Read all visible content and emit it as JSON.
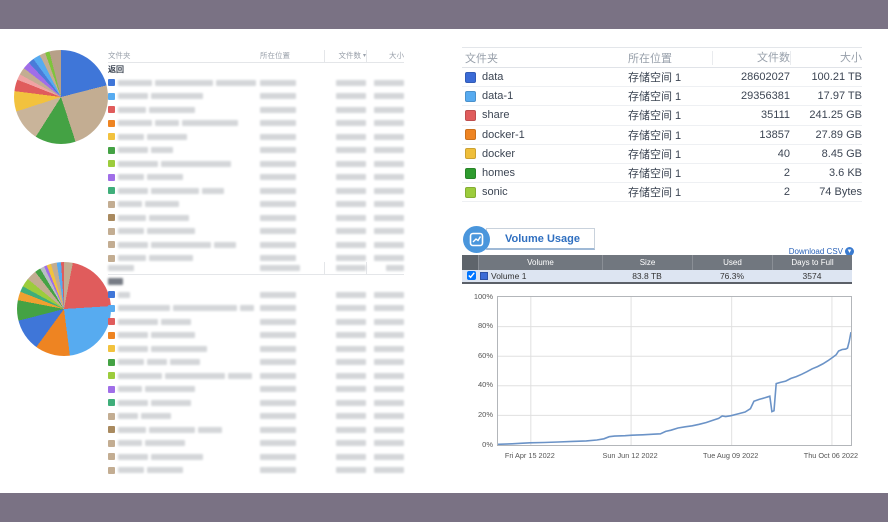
{
  "frame": {
    "bar_color": "#7a7284",
    "content_color": "#ffffff"
  },
  "left_panel": {
    "table1": {
      "headers": {
        "folder": "文件夹",
        "location": "所在位置",
        "count": "文件数",
        "sort_icon": "▾",
        "size": "大小"
      },
      "back_label": "返回",
      "rows": [
        {
          "color": "#3f76d8",
          "name_blobs": [
            34,
            58,
            40
          ]
        },
        {
          "color": "#57abf0",
          "name_blobs": [
            30,
            52
          ]
        },
        {
          "color": "#e05c5c",
          "name_blobs": [
            28,
            46
          ]
        },
        {
          "color": "#ee8422",
          "name_blobs": [
            34,
            24,
            56
          ]
        },
        {
          "color": "#f2c23e",
          "name_blobs": [
            26,
            40
          ]
        },
        {
          "color": "#44a244",
          "name_blobs": [
            30,
            22
          ]
        },
        {
          "color": "#9ccc3c",
          "name_blobs": [
            40,
            70
          ]
        },
        {
          "color": "#a06ee8",
          "name_blobs": [
            26,
            36
          ]
        },
        {
          "color": "#3fae7a",
          "name_blobs": [
            30,
            48,
            22
          ]
        },
        {
          "color": "#c3ad92",
          "name_blobs": [
            24,
            34
          ]
        },
        {
          "color": "#a98a5f",
          "name_blobs": [
            28,
            40
          ]
        },
        {
          "color": "#c3ad92",
          "name_blobs": [
            26,
            48
          ]
        },
        {
          "color": "#c3ad92",
          "name_blobs": [
            30,
            60,
            22
          ]
        },
        {
          "color": "#c3ad92",
          "name_blobs": [
            28,
            44
          ]
        }
      ]
    },
    "table2": {
      "header_blobs": [
        26,
        40,
        30,
        18
      ],
      "rows": [
        {
          "color": "#3f76d8",
          "name_blobs": [
            12
          ]
        },
        {
          "color": "#57abf0",
          "name_blobs": [
            52,
            64,
            14
          ]
        },
        {
          "color": "#e05c5c",
          "name_blobs": [
            40,
            30
          ]
        },
        {
          "color": "#ee8422",
          "name_blobs": [
            30,
            44
          ]
        },
        {
          "color": "#f2c23e",
          "name_blobs": [
            30,
            56
          ]
        },
        {
          "color": "#44a244",
          "name_blobs": [
            26,
            20,
            30
          ]
        },
        {
          "color": "#9ccc3c",
          "name_blobs": [
            44,
            60,
            24
          ]
        },
        {
          "color": "#a06ee8",
          "name_blobs": [
            24,
            50
          ]
        },
        {
          "color": "#3fae7a",
          "name_blobs": [
            30,
            40
          ]
        },
        {
          "color": "#c3ad92",
          "name_blobs": [
            20,
            30
          ]
        },
        {
          "color": "#a98a5f",
          "name_blobs": [
            28,
            46,
            24
          ]
        },
        {
          "color": "#c3ad92",
          "name_blobs": [
            24,
            40
          ]
        },
        {
          "color": "#c3ad92",
          "name_blobs": [
            30,
            52
          ]
        },
        {
          "color": "#c3ad92",
          "name_blobs": [
            26,
            36
          ]
        }
      ]
    }
  },
  "right_panel": {
    "folder_table": {
      "headers": {
        "folder": "文件夹",
        "location": "所在位置",
        "count": "文件数",
        "size": "大小"
      },
      "rows": [
        {
          "color": "#3b6bd6",
          "name": "data",
          "location": "存储空间 1",
          "count": "28602027",
          "size": "100.21 TB"
        },
        {
          "color": "#57abf0",
          "name": "data-1",
          "location": "存储空间 1",
          "count": "29356381",
          "size": "17.97 TB"
        },
        {
          "color": "#e05c5c",
          "name": "share",
          "location": "存储空间 1",
          "count": "35111",
          "size": "241.25 GB"
        },
        {
          "color": "#ee8422",
          "name": "docker-1",
          "location": "存储空间 1",
          "count": "13857",
          "size": "27.89 GB"
        },
        {
          "color": "#efbe3a",
          "name": "docker",
          "location": "存储空间 1",
          "count": "40",
          "size": "8.45 GB"
        },
        {
          "color": "#2e9b2e",
          "name": "homes",
          "location": "存储空间 1",
          "count": "2",
          "size": "3.6 KB"
        },
        {
          "color": "#9ccc3c",
          "name": "sonic",
          "location": "存储空间 1",
          "count": "2",
          "size": "74 Bytes"
        }
      ]
    },
    "volume_usage": {
      "title": "Volume Usage",
      "download_csv": "Download CSV",
      "table": {
        "headers": {
          "volume": "Volume",
          "size": "Size",
          "used": "Used",
          "days_to_full": "Days to Full"
        },
        "row": {
          "name": "Volume 1",
          "size": "83.8 TB",
          "used": "76.3%",
          "days_to_full": "3574",
          "color": "#3b6bd6",
          "checked": true
        }
      }
    }
  },
  "chart_data": [
    {
      "type": "pie",
      "title": "folder size distribution (top table, labels blurred)",
      "values": [
        21,
        24,
        14,
        11,
        7,
        4,
        2,
        2.5,
        2.5,
        2,
        2.5,
        2,
        1.5,
        4
      ],
      "colors": [
        "#3f76d8",
        "#c3ad92",
        "#44a244",
        "#c9b49a",
        "#f2c23e",
        "#e05c5c",
        "#f0a3a3",
        "#c3ad92",
        "#a06ee8",
        "#4a7bd9",
        "#57abf0",
        "#c3ad92",
        "#7ec43c",
        "#b7a088"
      ]
    },
    {
      "type": "pie",
      "title": "folder size distribution (bottom table, labels blurred)",
      "values": [
        3,
        21,
        24,
        12,
        11,
        7,
        3,
        2,
        3,
        3.5,
        2,
        1.5,
        1,
        1.5,
        2,
        1.5,
        1
      ],
      "colors": [
        "#c3ad92",
        "#e05c5c",
        "#57abf0",
        "#ee8422",
        "#3f76d8",
        "#44a244",
        "#f0a030",
        "#3fae7a",
        "#9ccc3c",
        "#c3ad92",
        "#44a244",
        "#b9bec4",
        "#a06ee8",
        "#f2c23e",
        "#c3ad92",
        "#57abf0",
        "#e05c5c"
      ]
    },
    {
      "type": "line",
      "title": "Volume 1 usage over time",
      "line_color": "#6b93c7",
      "ylim": [
        0,
        100
      ],
      "y_ticks": [
        0,
        20,
        40,
        60,
        80,
        100
      ],
      "y_tick_suffix": "%",
      "x_ticks": [
        {
          "label": "Fri Apr 15 2022",
          "pos": 9.3
        },
        {
          "label": "Sun Jun 12 2022",
          "pos": 37.7
        },
        {
          "label": "Tue Aug 09 2022",
          "pos": 66.2
        },
        {
          "label": "Thu Oct 06 2022",
          "pos": 94.6
        }
      ],
      "points": [
        [
          0,
          0.5
        ],
        [
          4,
          0.8
        ],
        [
          7,
          1.2
        ],
        [
          9,
          1.5
        ],
        [
          13,
          1.7
        ],
        [
          17,
          2.0
        ],
        [
          21,
          2.4
        ],
        [
          25,
          2.8
        ],
        [
          28,
          3.4
        ],
        [
          30,
          4.2
        ],
        [
          31.5,
          5.6
        ],
        [
          33,
          6.0
        ],
        [
          36,
          6.3
        ],
        [
          38,
          6.6
        ],
        [
          41,
          6.9
        ],
        [
          44,
          7.3
        ],
        [
          46,
          7.6
        ],
        [
          47.5,
          9.2
        ],
        [
          49,
          10.0
        ],
        [
          51,
          11.5
        ],
        [
          53,
          12.3
        ],
        [
          55,
          13.0
        ],
        [
          57,
          14.0
        ],
        [
          59,
          15.2
        ],
        [
          61,
          16.8
        ],
        [
          62.5,
          18.0
        ],
        [
          63.5,
          19.6
        ],
        [
          64.5,
          19.2
        ],
        [
          66,
          19.8
        ],
        [
          68,
          21.0
        ],
        [
          70,
          22.3
        ],
        [
          71.5,
          24.5
        ],
        [
          72.5,
          29.5
        ],
        [
          74,
          30.8
        ],
        [
          75.5,
          31.8
        ],
        [
          76.5,
          32.6
        ],
        [
          77,
          33.0
        ],
        [
          77.6,
          22.6
        ],
        [
          78.2,
          23.2
        ],
        [
          78.8,
          41.5
        ],
        [
          80,
          42.3
        ],
        [
          81.5,
          43.2
        ],
        [
          83,
          45.0
        ],
        [
          84.5,
          46.2
        ],
        [
          86,
          47.8
        ],
        [
          87.5,
          49.5
        ],
        [
          89,
          51.5
        ],
        [
          90.5,
          53.0
        ],
        [
          92,
          54.8
        ],
        [
          93.5,
          57.0
        ],
        [
          95,
          59.5
        ],
        [
          95.8,
          61.0
        ],
        [
          96.5,
          63.5
        ],
        [
          97.5,
          64.5
        ],
        [
          98.5,
          64.8
        ],
        [
          99,
          65.5
        ],
        [
          99.5,
          70.0
        ],
        [
          100,
          76.3
        ]
      ]
    }
  ]
}
